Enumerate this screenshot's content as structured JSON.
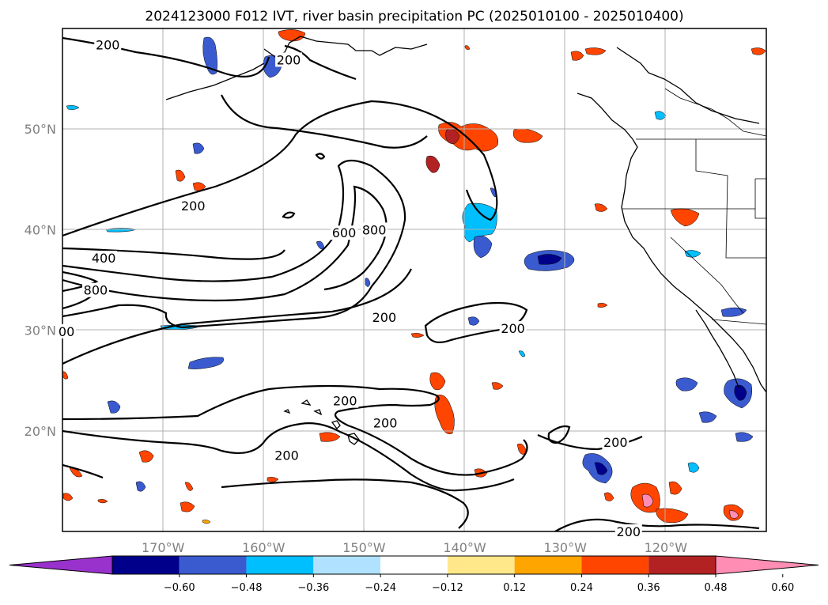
{
  "title": "2024123000 F012 IVT, river basin precipitation PC (2025010100 - 2025010400)",
  "map": {
    "lon_range": [
      -180,
      -110
    ],
    "lat_range": [
      10,
      60
    ],
    "lon_ticks": [
      {
        "lon": -170,
        "label": "170°W"
      },
      {
        "lon": -160,
        "label": "160°W"
      },
      {
        "lon": -150,
        "label": "150°W"
      },
      {
        "lon": -140,
        "label": "140°W"
      },
      {
        "lon": -130,
        "label": "130°W"
      },
      {
        "lon": -120,
        "label": "120°W"
      }
    ],
    "lat_ticks": [
      {
        "lat": 20,
        "label": "20°N"
      },
      {
        "lat": 30,
        "label": "30°N"
      },
      {
        "lat": 40,
        "label": "40°N"
      },
      {
        "lat": 50,
        "label": "50°N"
      }
    ],
    "grid": true
  },
  "ivt_contours": {
    "levels": [
      200,
      400,
      600,
      800
    ],
    "labels": [
      {
        "text": "200",
        "lon": -175.5,
        "lat": 58.4
      },
      {
        "text": "200",
        "lon": -157.5,
        "lat": 56.9
      },
      {
        "text": "200",
        "lon": -167.0,
        "lat": 42.4
      },
      {
        "text": "400",
        "lon": -175.9,
        "lat": 37.2
      },
      {
        "text": "800",
        "lon": -176.7,
        "lat": 34.0
      },
      {
        "text": "600",
        "lon": -152.0,
        "lat": 39.7
      },
      {
        "text": "800",
        "lon": -149.0,
        "lat": 40.0
      },
      {
        "text": "200",
        "lon": -148.0,
        "lat": 31.3
      },
      {
        "text": "200",
        "lon": -135.2,
        "lat": 30.2
      },
      {
        "text": "200",
        "lon": -151.9,
        "lat": 23.0
      },
      {
        "text": "200",
        "lon": -147.9,
        "lat": 20.8
      },
      {
        "text": "200",
        "lon": -157.7,
        "lat": 17.6
      },
      {
        "text": "200",
        "lon": -125.0,
        "lat": 18.9
      },
      {
        "text": "200",
        "lon": -123.7,
        "lat": 10.0
      },
      {
        "text": "00",
        "lon": -179.6,
        "lat": 29.9
      }
    ]
  },
  "colorbar": {
    "colors": [
      "#9932cc",
      "#00008b",
      "#3a5bd0",
      "#00bfff",
      "#b0e2ff",
      "#ffffff",
      "#ffe88a",
      "#ffa500",
      "#ff4500",
      "#b22222",
      "#ff8db4"
    ],
    "ticks": [
      "−0.60",
      "−0.48",
      "−0.36",
      "−0.24",
      "−0.12",
      "0.12",
      "0.24",
      "0.36",
      "0.48",
      "0.60"
    ],
    "extend": "both"
  }
}
